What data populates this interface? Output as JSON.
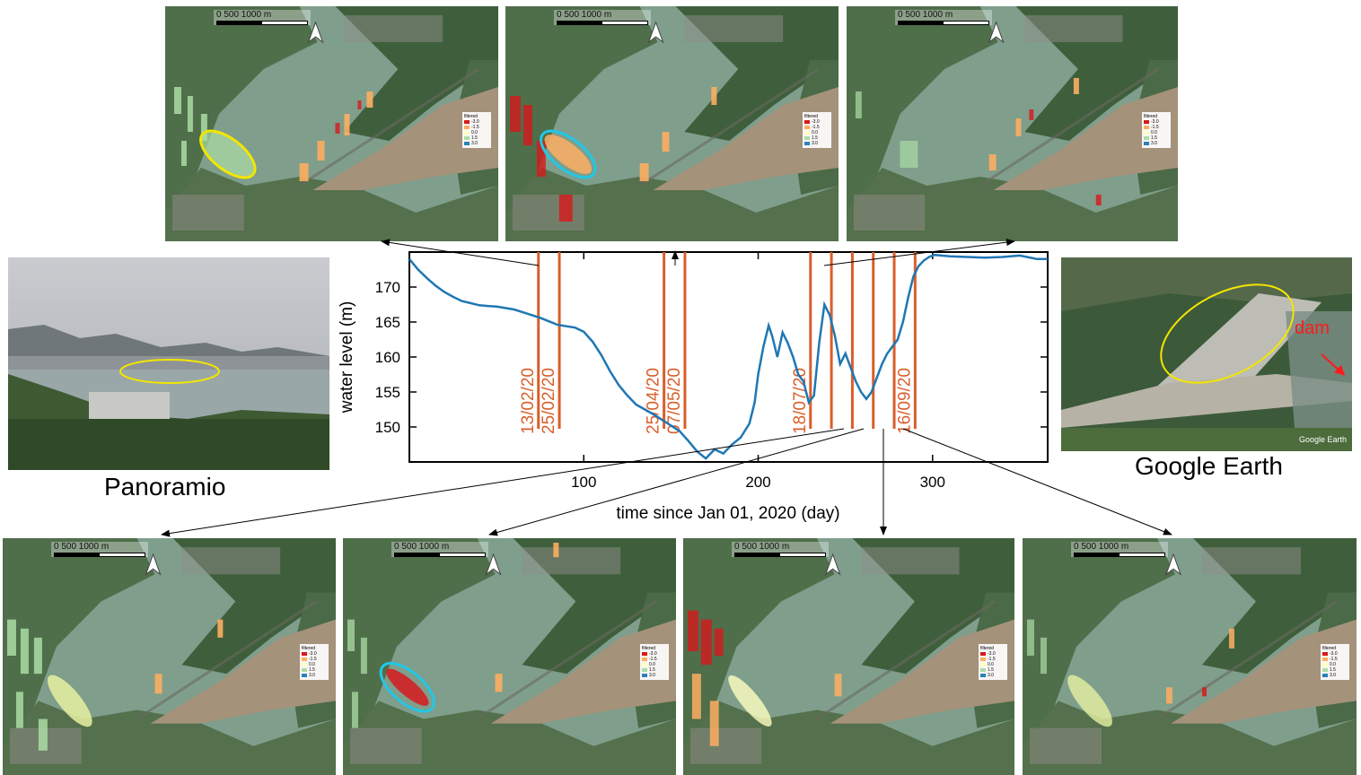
{
  "map_panels": {
    "scale_label": "0 500 1000 m",
    "legend": {
      "title": "filtered",
      "entries": [
        {
          "label": "-3.0",
          "color": "#d7191c"
        },
        {
          "label": "-1.5",
          "color": "#fdae61"
        },
        {
          "label": "0.0",
          "color": "#ffffbf"
        },
        {
          "label": "1.5",
          "color": "#abdda4"
        },
        {
          "label": "3.0",
          "color": "#2b83ba"
        }
      ]
    },
    "highlight_colors": {
      "yellow": "#f2e600",
      "cyan": "#22c8e6"
    }
  },
  "photos": {
    "left_caption": "Panoramio",
    "right_caption": "Google Earth",
    "dam_label": "dam",
    "ge_watermark": "Google Earth"
  },
  "chart_data": {
    "type": "line",
    "xlabel": "time since Jan 01, 2020 (day)",
    "ylabel": "water level (m)",
    "xlim": [
      0,
      366
    ],
    "ylim": [
      145,
      175
    ],
    "xticks": [
      100,
      200,
      300
    ],
    "yticks": [
      150,
      155,
      160,
      165,
      170
    ],
    "line_color": "#1f77b4",
    "marker_color": "#d95f2b",
    "series": [
      {
        "x": [
          0,
          5,
          10,
          15,
          20,
          25,
          30,
          35,
          40,
          45,
          50,
          55,
          60,
          65,
          70,
          75,
          80,
          85,
          90,
          95,
          100,
          105,
          110,
          115,
          120,
          125,
          130,
          135,
          140,
          145,
          150,
          155,
          160,
          165,
          170,
          175,
          180,
          185,
          190,
          195,
          198,
          200,
          203,
          206,
          208,
          211,
          214,
          217,
          220,
          223,
          226,
          229,
          232,
          235,
          238,
          241,
          244,
          247,
          250,
          253,
          256,
          259,
          262,
          265,
          268,
          271,
          274,
          277,
          280,
          283,
          286,
          289,
          292,
          295,
          298,
          301,
          305,
          310,
          320,
          330,
          340,
          350,
          360,
          366
        ],
        "y": [
          174,
          172.5,
          171.3,
          170.2,
          169.3,
          168.6,
          168.0,
          167.7,
          167.4,
          167.3,
          167.2,
          167.0,
          166.8,
          166.4,
          166.0,
          165.6,
          165.1,
          164.6,
          164.4,
          164.2,
          163.6,
          162.2,
          160.3,
          158.0,
          156.0,
          154.5,
          153.2,
          152.5,
          151.8,
          151.0,
          150.2,
          149.4,
          148.0,
          146.5,
          145.5,
          146.8,
          146.2,
          147.5,
          148.5,
          150.5,
          153.5,
          157.5,
          161.5,
          164.5,
          163.0,
          160.0,
          163.5,
          162.0,
          160.0,
          157.5,
          156.5,
          153.5,
          154.5,
          162.0,
          167.5,
          166.0,
          163.0,
          159.0,
          160.5,
          158.5,
          156.5,
          155.0,
          154.0,
          155.0,
          157.0,
          159.0,
          160.5,
          161.5,
          162.5,
          165.0,
          168.5,
          171.5,
          173.0,
          173.8,
          174.3,
          174.6,
          174.5,
          174.4,
          174.3,
          174.2,
          174.3,
          174.5,
          174.0,
          174.0
        ]
      }
    ],
    "date_markers": [
      {
        "day": 74,
        "label": "13/02/20"
      },
      {
        "day": 86,
        "label": "25/02/20"
      },
      {
        "day": 146,
        "label": "25/04/20"
      },
      {
        "day": 158,
        "label": "07/05/20"
      },
      {
        "day": 230,
        "label": "18/07/20"
      },
      {
        "day": 242,
        "label": ""
      },
      {
        "day": 254,
        "label": ""
      },
      {
        "day": 266,
        "label": ""
      },
      {
        "day": 278,
        "label": ""
      },
      {
        "day": 290,
        "label": "16/09/20"
      }
    ]
  }
}
